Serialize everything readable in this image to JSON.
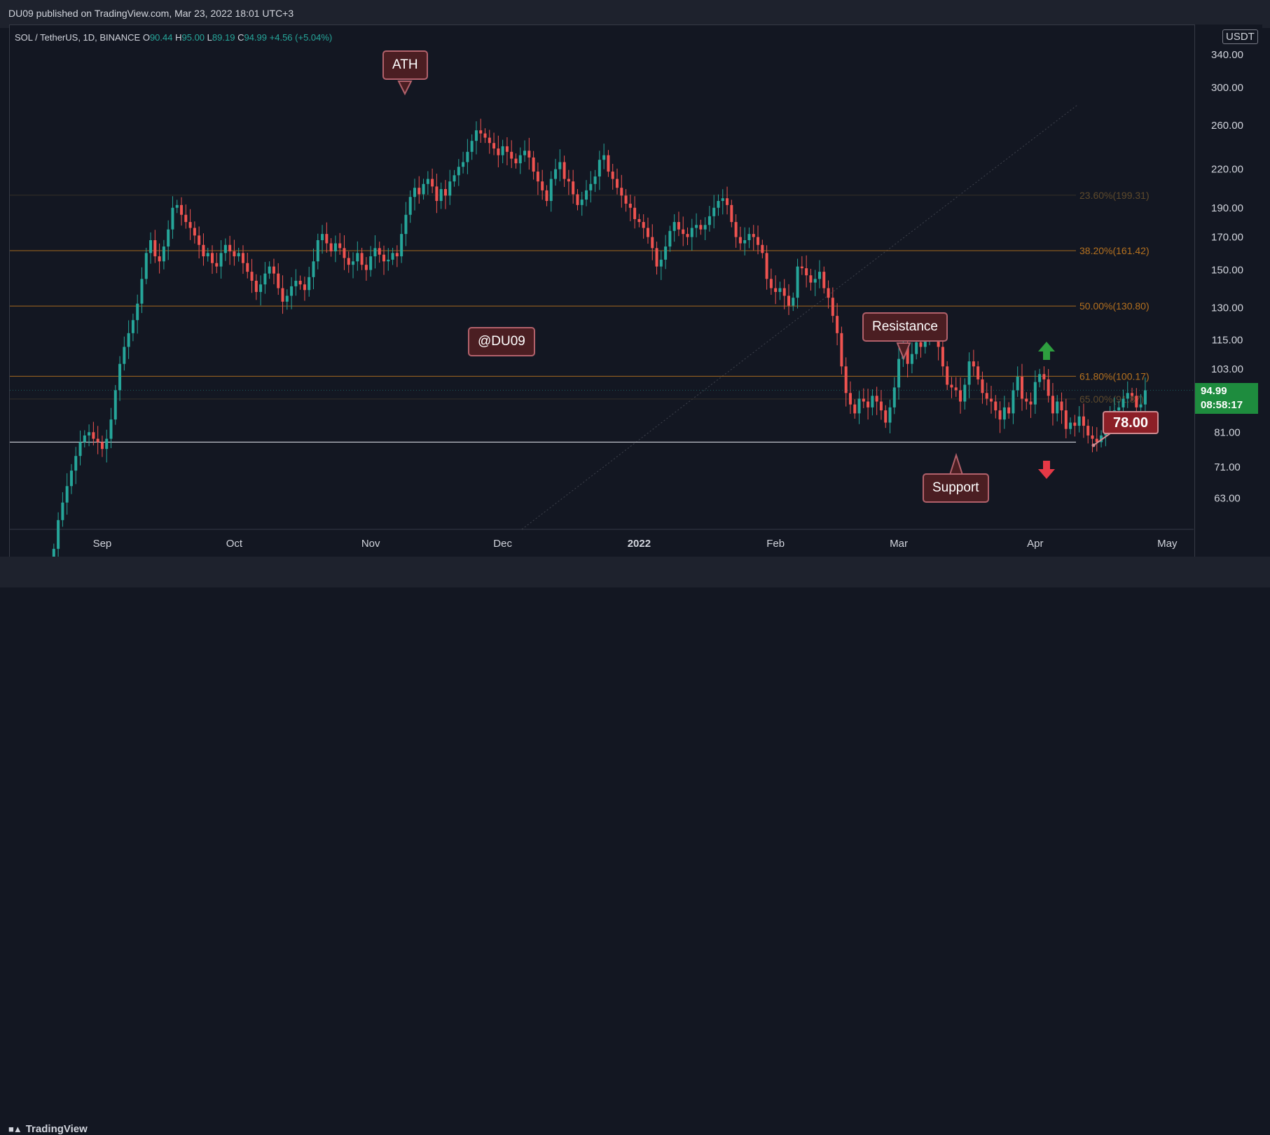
{
  "header": {
    "published": "DU09 published on TradingView.com, Mar 23, 2022 18:01 UTC+3"
  },
  "legend": {
    "symbol": "SOL / TetherUS, 1D, BINANCE",
    "o_label": "O",
    "o_value": "90.44",
    "h_label": "H",
    "h_value": "95.00",
    "l_label": "L",
    "l_value": "89.19",
    "c_label": "C",
    "c_value": "94.99",
    "change": "+4.56 (+5.04%)"
  },
  "currency_badge": "USDT",
  "last_price": {
    "price": "94.99",
    "countdown": "08:58:17"
  },
  "callouts": {
    "ath": "ATH",
    "watermark": "@DU09",
    "resistance": "Resistance",
    "support": "Support"
  },
  "target_price": "78.00",
  "footer": {
    "brand": "TradingView"
  },
  "colors": {
    "background": "#131722",
    "up": "#26a69a",
    "down": "#ef5350",
    "fib_line": "#b5711f",
    "support_line": "#d1d4dc",
    "callout_fill": "#4b1e22",
    "last_price_bg": "#1e8c3e",
    "arrow_up": "#2e9e3f",
    "arrow_down": "#e53946"
  },
  "icons": [
    "tradingview-logo-icon",
    "arrow-up-icon",
    "arrow-down-icon"
  ],
  "chart_data": {
    "type": "candlestick",
    "symbol": "SOL / TetherUS",
    "timeframe": "1D",
    "exchange": "BINANCE",
    "scale": "log",
    "ylim": [
      56,
      340
    ],
    "y_ticks": [
      "63.00",
      "71.00",
      "81.00",
      "94.99",
      "103.00",
      "115.00",
      "130.00",
      "150.00",
      "170.00",
      "190.00",
      "220.00",
      "260.00",
      "300.00",
      "340.00"
    ],
    "x_tick_labels": [
      "Sep",
      "Oct",
      "Nov",
      "Dec",
      "2022",
      "Feb",
      "Mar",
      "Apr",
      "May"
    ],
    "x_tick_dates": [
      "2021-09-01",
      "2021-10-01",
      "2021-11-01",
      "2021-12-01",
      "2022-01-01",
      "2022-02-01",
      "2022-03-01",
      "2022-04-01",
      "2022-05-01"
    ],
    "date_range": [
      "2021-08-11",
      "2022-05-07"
    ],
    "first_date": "2021-08-21",
    "fib_levels": [
      {
        "label": "23.60%(199.31)",
        "value": 199.31,
        "faded": true
      },
      {
        "label": "38.20%(161.42)",
        "value": 161.42,
        "faded": false
      },
      {
        "label": "50.00%(130.80)",
        "value": 130.8,
        "faded": false
      },
      {
        "label": "61.80%(100.17)",
        "value": 100.17,
        "faded": false
      },
      {
        "label": "65.00%(91.87)",
        "value": 91.87,
        "faded": true
      }
    ],
    "support_level": 78.0,
    "close": [
      52,
      58,
      62,
      66,
      70,
      74,
      78,
      80,
      81,
      79,
      78,
      76,
      79,
      85,
      95,
      105,
      112,
      118,
      124,
      132,
      145,
      160,
      168,
      158,
      155,
      164,
      175,
      190,
      192,
      185,
      180,
      176,
      171,
      165,
      158,
      160,
      154,
      152,
      160,
      165,
      161,
      158,
      160,
      154,
      149,
      144,
      138,
      142,
      148,
      152,
      148,
      140,
      133,
      136,
      141,
      144,
      142,
      139,
      146,
      155,
      168,
      172,
      166,
      161,
      166,
      163,
      157,
      153,
      155,
      160,
      153,
      150,
      158,
      163,
      159,
      155,
      156,
      160,
      158,
      172,
      185,
      198,
      205,
      200,
      208,
      212,
      206,
      195,
      204,
      199,
      210,
      215,
      222,
      226,
      235,
      245,
      255,
      252,
      248,
      243,
      238,
      232,
      240,
      235,
      229,
      225,
      232,
      236,
      230,
      218,
      210,
      203,
      195,
      212,
      220,
      226,
      212,
      210,
      200,
      192,
      196,
      203,
      208,
      214,
      228,
      232,
      218,
      212,
      205,
      199,
      193,
      190,
      182,
      180,
      176,
      170,
      163,
      152,
      156,
      164,
      174,
      180,
      175,
      172,
      170,
      176,
      178,
      175,
      178,
      184,
      190,
      195,
      197,
      192,
      180,
      170,
      166,
      168,
      172,
      170,
      165,
      160,
      145,
      140,
      138,
      140,
      136,
      131,
      135,
      152,
      151,
      147,
      143,
      145,
      149,
      140,
      135,
      126,
      118,
      104,
      94,
      90,
      87,
      92,
      91,
      89,
      93,
      91,
      88,
      84,
      89,
      96,
      107,
      112,
      105,
      109,
      114,
      112,
      118,
      120,
      119,
      112,
      104,
      97,
      96,
      95,
      91,
      97,
      106,
      104,
      99,
      94,
      92,
      91,
      88,
      85,
      89,
      87,
      95,
      100,
      92,
      91,
      90,
      98,
      101,
      99,
      93,
      87,
      91,
      88,
      82,
      84,
      83,
      86,
      83,
      80,
      79,
      78,
      80,
      83,
      86,
      88,
      89,
      92,
      94,
      93,
      89,
      90,
      94.99
    ],
    "highs_note": "OHLC derived from close series with small wicks",
    "current_price": 94.99
  }
}
